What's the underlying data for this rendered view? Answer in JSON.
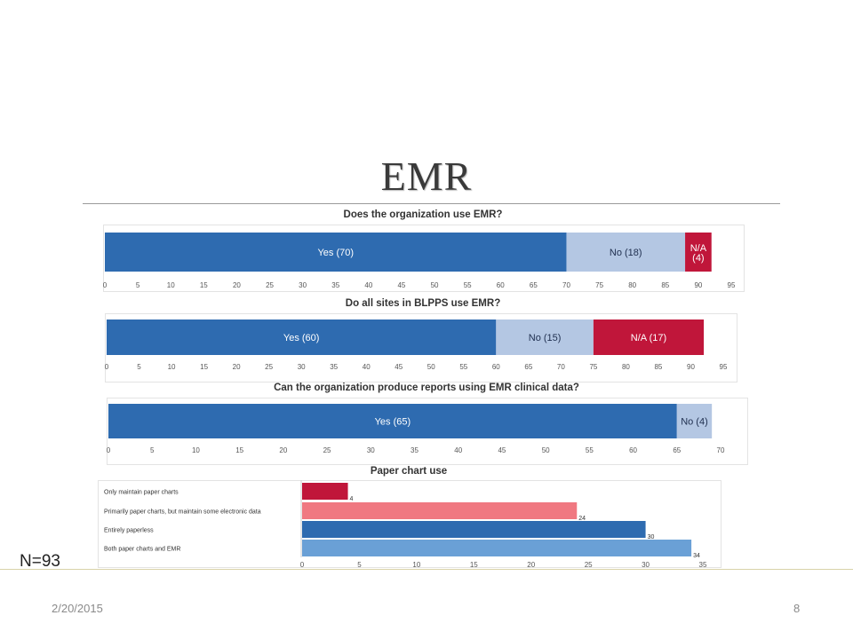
{
  "slide": {
    "title": "EMR",
    "n_label": "N=93",
    "date": "2/20/2015",
    "page_number": "8"
  },
  "colors": {
    "yes": "#2e6bb0",
    "no": "#b4c7e3",
    "na": "#c0163a",
    "paper_only": "#c0163a",
    "paper_primarily": "#f07881",
    "paperless": "#2e6bb0",
    "both": "#6aa0d6"
  },
  "chart_data": [
    {
      "type": "bar",
      "orientation": "horizontal-stacked",
      "title": "Does the organization use EMR?",
      "segments": [
        {
          "label": "Yes (70)",
          "value": 70,
          "color_key": "yes"
        },
        {
          "label": "No (18)",
          "value": 18,
          "color_key": "no"
        },
        {
          "label": "N/A\n(4)",
          "value": 4,
          "color_key": "na"
        }
      ],
      "xlim": [
        0,
        95
      ],
      "xticks": [
        0,
        5,
        10,
        15,
        20,
        25,
        30,
        35,
        40,
        45,
        50,
        55,
        60,
        65,
        70,
        75,
        80,
        85,
        90,
        95
      ]
    },
    {
      "type": "bar",
      "orientation": "horizontal-stacked",
      "title": "Do all sites in BLPPS use EMR?",
      "segments": [
        {
          "label": "Yes (60)",
          "value": 60,
          "color_key": "yes"
        },
        {
          "label": "No (15)",
          "value": 15,
          "color_key": "no"
        },
        {
          "label": "N/A (17)",
          "value": 17,
          "color_key": "na"
        }
      ],
      "xlim": [
        0,
        95
      ],
      "xticks": [
        0,
        5,
        10,
        15,
        20,
        25,
        30,
        35,
        40,
        45,
        50,
        55,
        60,
        65,
        70,
        75,
        80,
        85,
        90,
        95
      ]
    },
    {
      "type": "bar",
      "orientation": "horizontal-stacked",
      "title": "Can the organization produce reports using EMR clinical data?",
      "segments": [
        {
          "label": "Yes (65)",
          "value": 65,
          "color_key": "yes"
        },
        {
          "label": "No (4)",
          "value": 4,
          "color_key": "no"
        }
      ],
      "xlim": [
        0,
        70
      ],
      "xticks": [
        0,
        5,
        10,
        15,
        20,
        25,
        30,
        35,
        40,
        45,
        50,
        55,
        60,
        65,
        70
      ]
    },
    {
      "type": "bar",
      "orientation": "horizontal",
      "title": "Paper chart use",
      "categories": [
        "Only maintain paper charts",
        "Primarily  paper charts, but maintain some electronic data",
        "Entirely paperless",
        "Both paper charts and EMR"
      ],
      "values": [
        4,
        24,
        30,
        34
      ],
      "color_keys": [
        "paper_only",
        "paper_primarily",
        "paperless",
        "both"
      ],
      "xlim": [
        0,
        35
      ],
      "xticks": [
        0,
        5,
        10,
        15,
        20,
        25,
        30,
        35
      ]
    }
  ]
}
